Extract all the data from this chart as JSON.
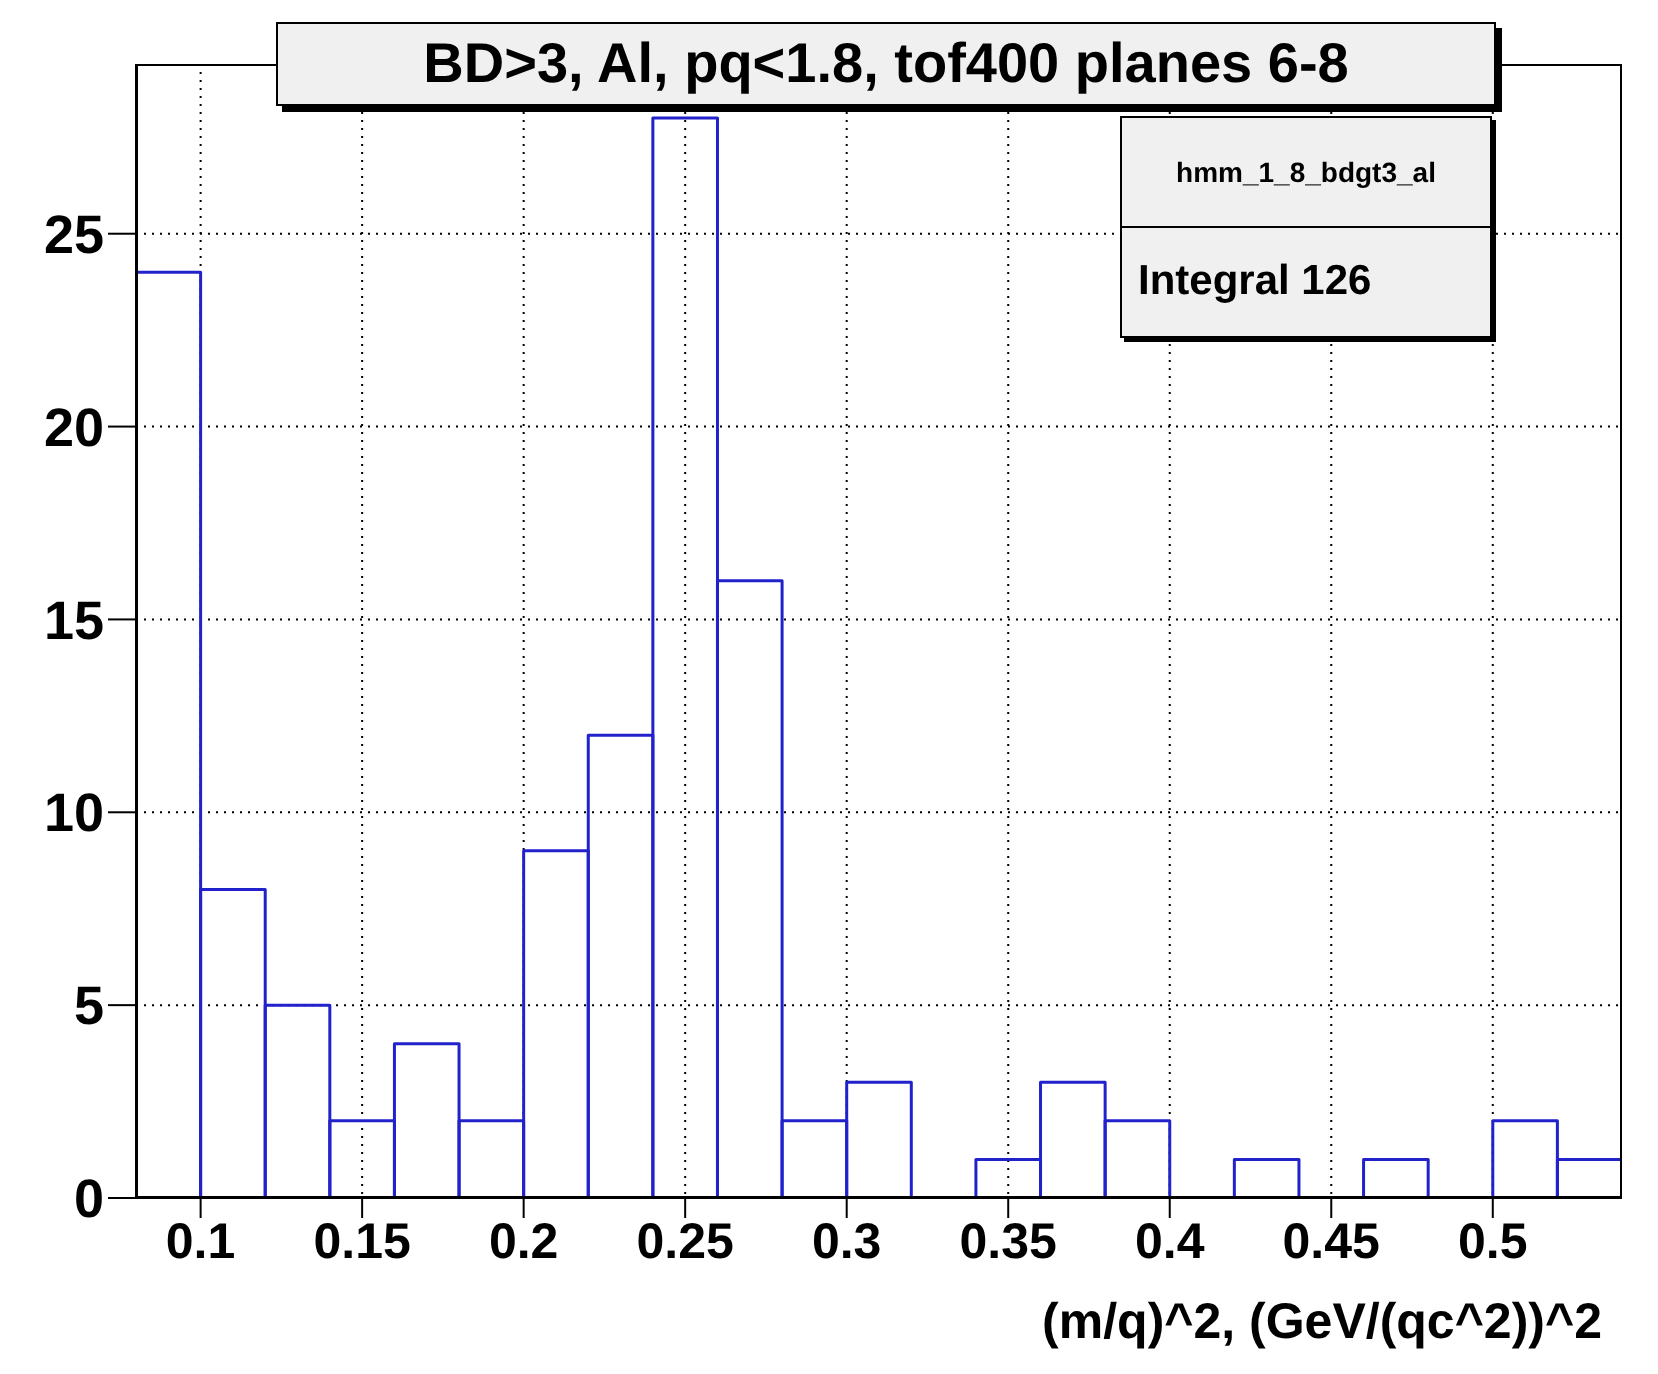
{
  "chart_data": {
    "type": "histogram",
    "title": "BD>3, Al, pq<1.8, tof400 planes 6-8",
    "xlabel": "(m/q)^2, (GeV/(qc^2))^2",
    "bins": [
      0.08,
      0.1,
      0.12,
      0.14,
      0.16,
      0.18,
      0.2,
      0.22,
      0.24,
      0.26,
      0.28,
      0.3,
      0.32,
      0.34,
      0.36,
      0.38,
      0.4,
      0.42,
      0.44,
      0.46,
      0.48,
      0.5,
      0.52,
      0.54
    ],
    "values": [
      24,
      8,
      5,
      2,
      4,
      2,
      9,
      12,
      28,
      16,
      2,
      3,
      0,
      1,
      3,
      2,
      0,
      1,
      0,
      1,
      0,
      2,
      1
    ],
    "color": "#2222cc",
    "xlim": [
      0.08,
      0.54
    ],
    "xticks": [
      0.1,
      0.15,
      0.2,
      0.25,
      0.3,
      0.35,
      0.4,
      0.45,
      0.5
    ],
    "ylim": [
      0,
      29.4
    ],
    "yticks": [
      0,
      5,
      10,
      15,
      20,
      25
    ],
    "grid": true,
    "annotations": [
      "hmm_1_8_bdgt3_al",
      "Integral 126"
    ]
  }
}
